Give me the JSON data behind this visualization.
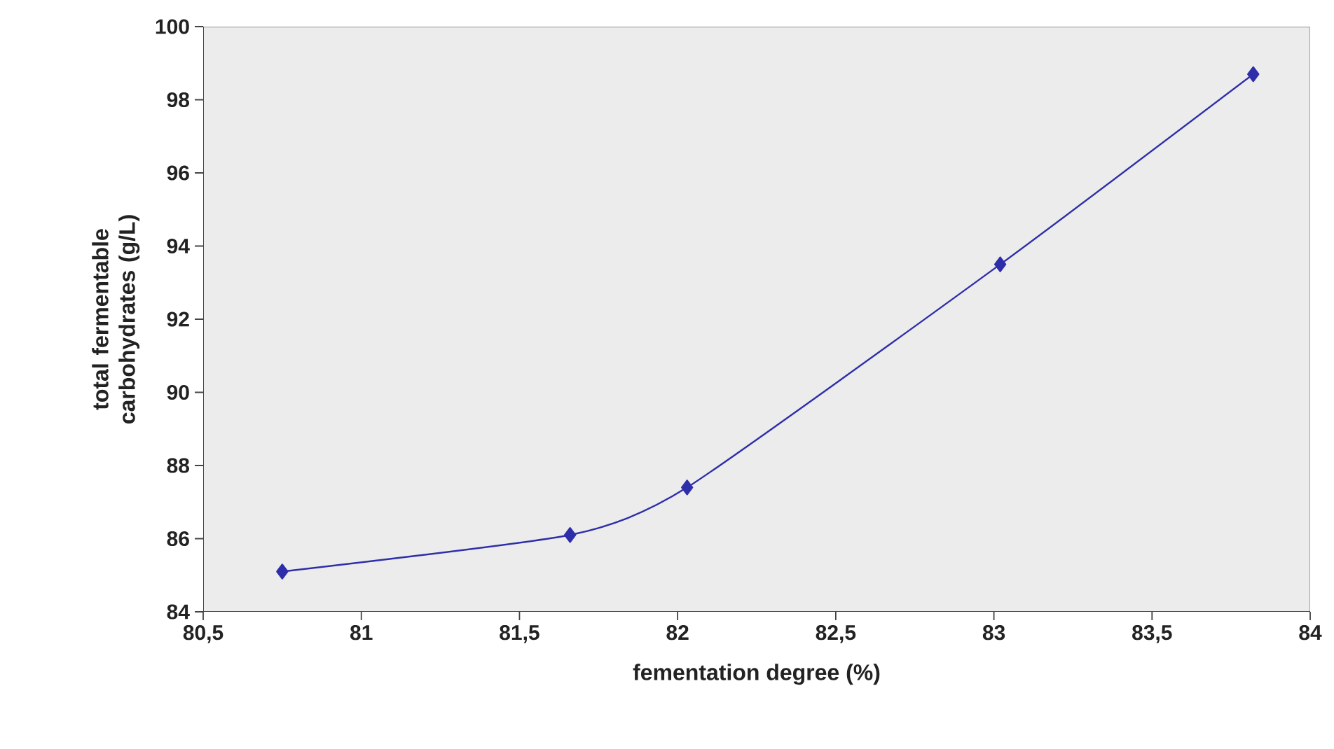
{
  "chart_data": {
    "type": "line",
    "xlabel": "fementation degree (%)",
    "ylabel": "total fermentable carbohydrates (g/L)",
    "x": [
      80.75,
      81.66,
      82.03,
      83.02,
      83.82
    ],
    "series": [
      {
        "color": "#2e2eaa",
        "values": [
          85.1,
          86.1,
          87.4,
          93.5,
          98.7
        ]
      }
    ],
    "xlim": [
      80.5,
      84
    ],
    "xticks": [
      {
        "value": 80.5,
        "label": "80,5"
      },
      81,
      {
        "value": 81.5,
        "label": "81,5"
      },
      82,
      {
        "value": 82.5,
        "label": "82,5"
      },
      83,
      {
        "value": 83.5,
        "label": "83,5"
      },
      84
    ],
    "ylim": [
      84,
      100
    ],
    "yticks": [
      84,
      86,
      88,
      90,
      92,
      94,
      96,
      98,
      100
    ],
    "grid": false,
    "marker": "diamond",
    "line_style": "solid"
  }
}
